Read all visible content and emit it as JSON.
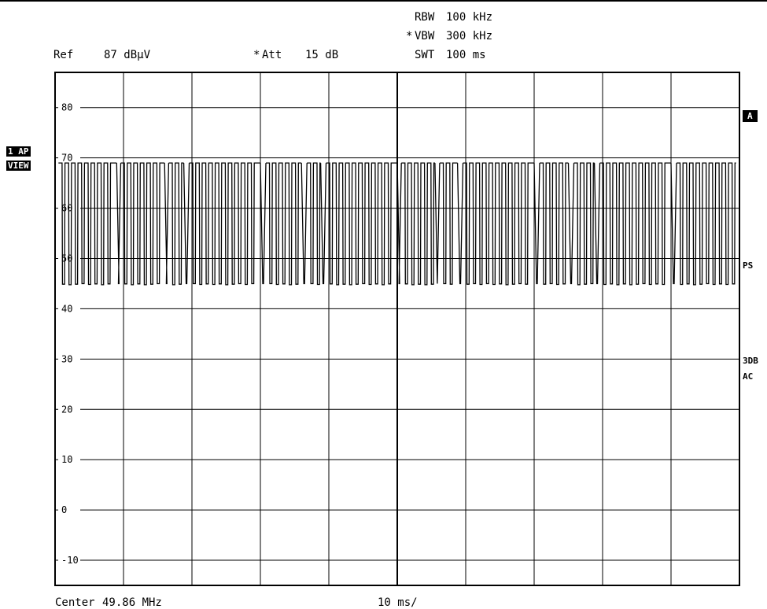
{
  "header": {
    "ref_label": "Ref",
    "ref_value": "87 dBµV",
    "att_star": "*",
    "att_label": "Att",
    "att_value": "15 dB",
    "rbw_label": "RBW",
    "rbw_value": "100 kHz",
    "vbw_star": "*",
    "vbw_label": "VBW",
    "vbw_value": "300 kHz",
    "swt_label": "SWT",
    "swt_value": "100 ms"
  },
  "footer": {
    "center_label": "Center",
    "center_value": "49.86 MHz",
    "div_value": "10 ms/"
  },
  "left_tags": {
    "trace": "1 AP",
    "mode": "VIEW"
  },
  "right_tags": {
    "trigger": "A",
    "ps": "PS",
    "bw": "3DB",
    "coupling": "AC"
  },
  "chart_data": {
    "type": "line",
    "x_unit": "ms",
    "xlim": [
      0,
      100
    ],
    "ylim": [
      -15,
      87
    ],
    "y_ticks": [
      80,
      70,
      60,
      50,
      40,
      30,
      20,
      10,
      0,
      -10
    ],
    "grid": true,
    "high_level": 69,
    "low_level": 45,
    "series": [
      {
        "segments_ms": [
          [
            0.5,
            9
          ],
          [
            9.6,
            16
          ],
          [
            16.6,
            18.8
          ],
          [
            19.6,
            30
          ],
          [
            30.8,
            36
          ],
          [
            36.8,
            38.8
          ],
          [
            39.6,
            50
          ],
          [
            50.6,
            55.5
          ],
          [
            56.2,
            58.8
          ],
          [
            59.6,
            70
          ],
          [
            70.8,
            75
          ],
          [
            75.8,
            78.8
          ],
          [
            79.6,
            90
          ],
          [
            90.8,
            99.5
          ]
        ],
        "pulse_period_ms": 0.95,
        "pulse_duty": 0.55
      }
    ]
  }
}
